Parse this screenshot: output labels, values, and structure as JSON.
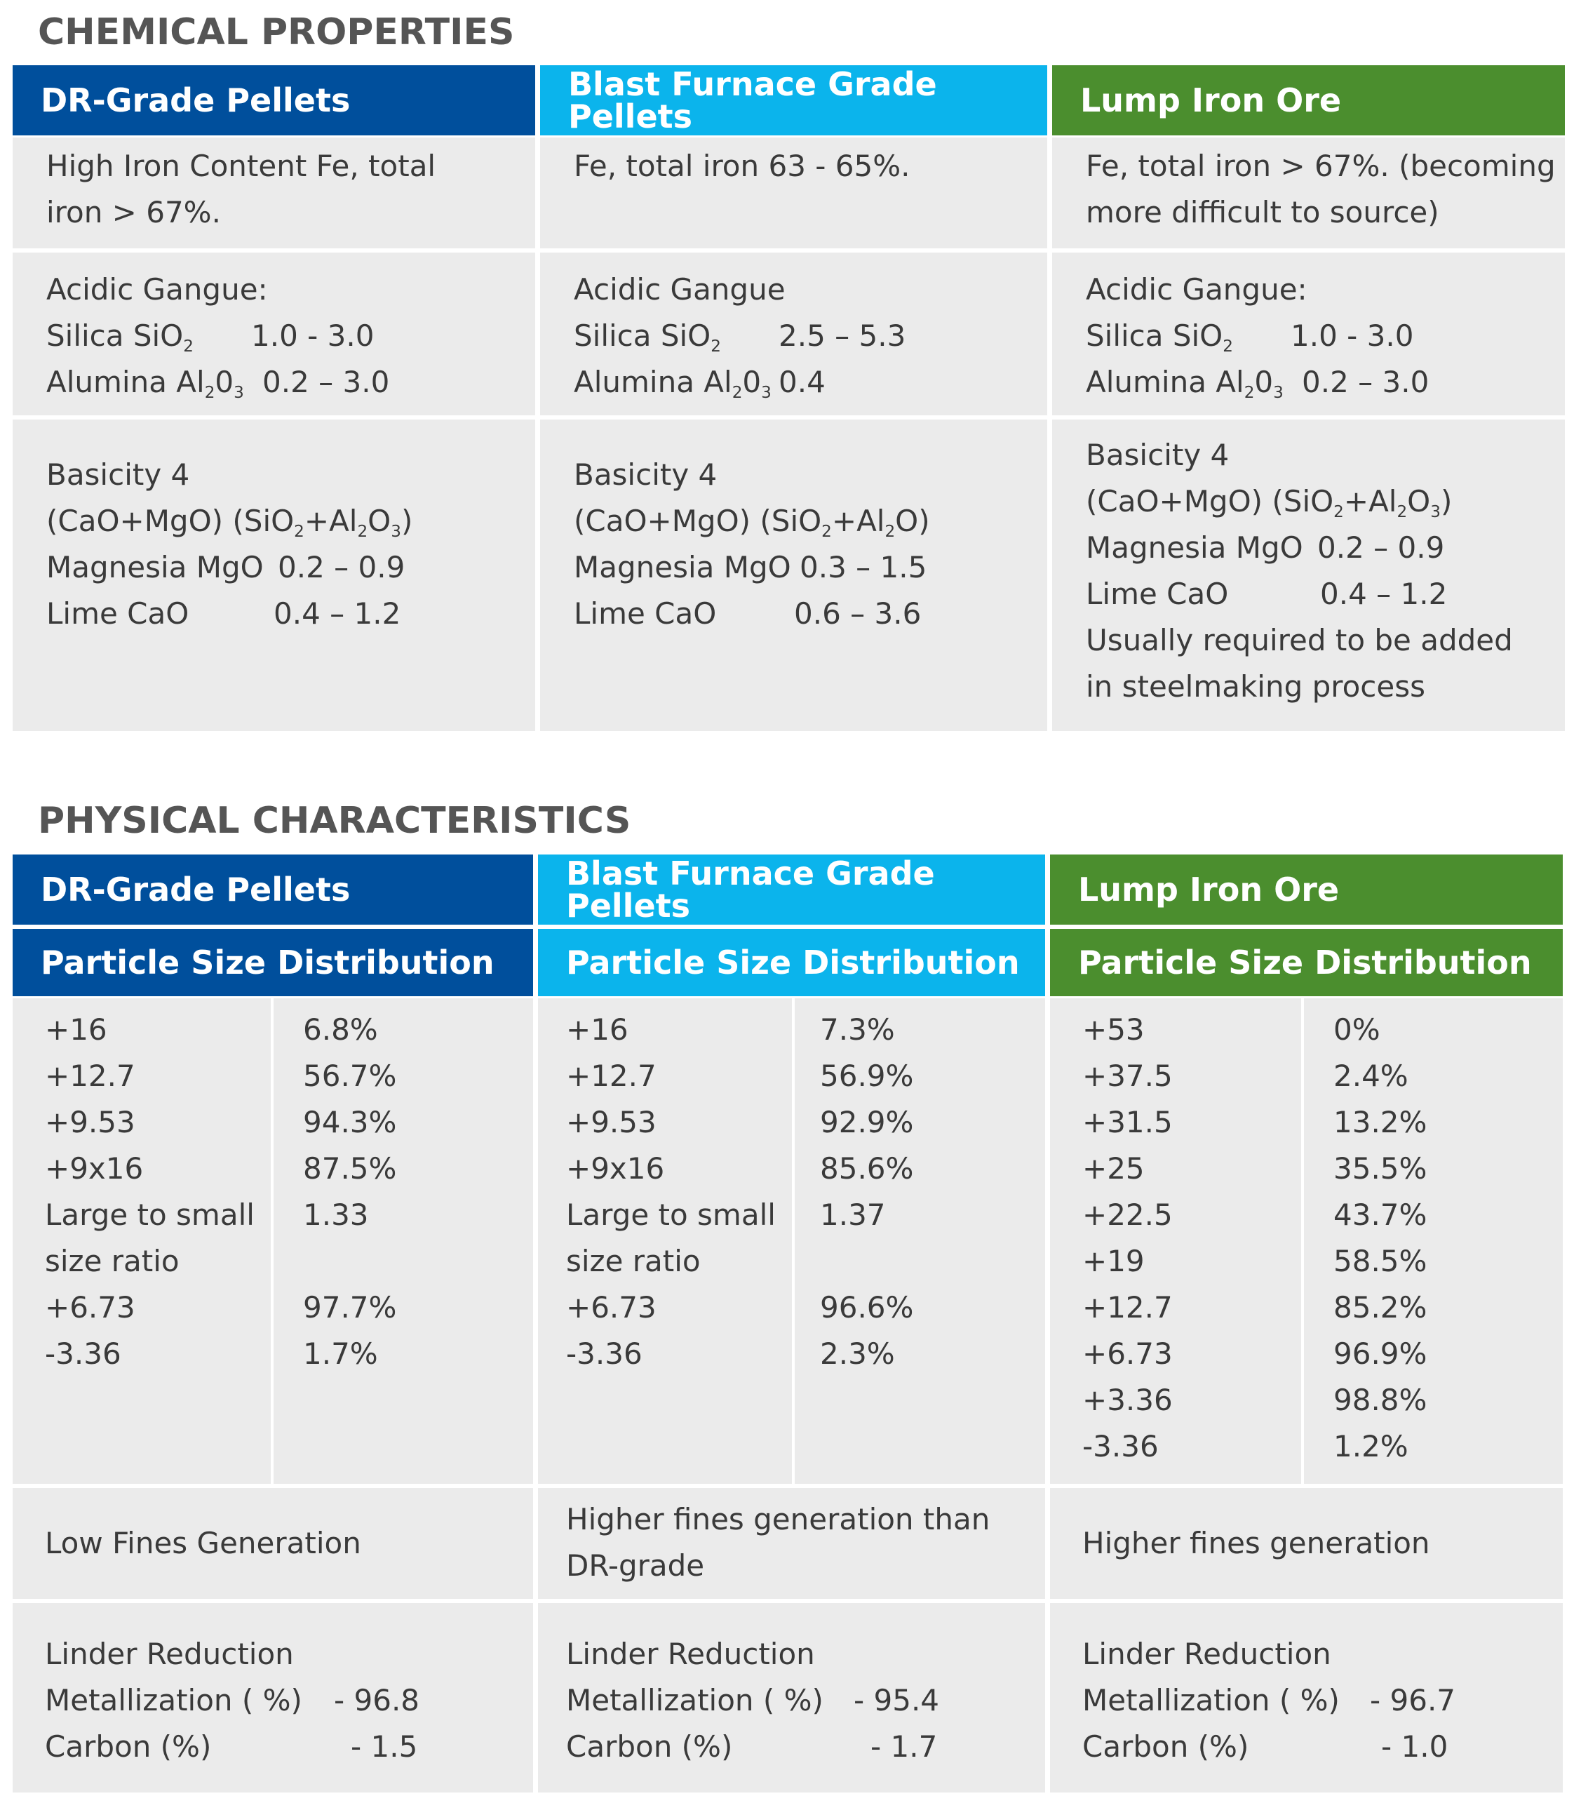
{
  "chemical": {
    "title": "CHEMICAL PROPERTIES",
    "headers": [
      "DR-Grade Pellets",
      "Blast Furnace Grade Pellets",
      "Lump Iron Ore"
    ],
    "iron": {
      "dr": [
        "High Iron Content Fe, total",
        "iron > 67%."
      ],
      "bf": [
        "Fe, total iron 63 - 65%."
      ],
      "lu": [
        "Fe, total iron > 67%. (becoming",
        "more difficult to source)"
      ]
    },
    "gangue": {
      "dr": {
        "title": "Acidic Gangue:",
        "silica_label": "Silica SiO",
        "silica_sub": "2",
        "silica_value": "1.0 - 3.0",
        "alumina_label": "Alumina Al",
        "alumina_sub1": "2",
        "alumina_mid": "0",
        "alumina_sub2": "3",
        "alumina_value": "0.2 – 3.0"
      },
      "bf": {
        "title": "Acidic Gangue",
        "silica_label": "Silica SiO",
        "silica_sub": "2",
        "silica_value": "2.5 – 5.3",
        "alumina_label": "Alumina Al",
        "alumina_sub1": "2",
        "alumina_mid": "0",
        "alumina_sub2": "3",
        "alumina_value": "0.4"
      },
      "lu": {
        "title": "Acidic Gangue:",
        "silica_label": "Silica  SiO",
        "silica_sub": "2",
        "silica_value": "1.0 - 3.0",
        "alumina_label": "Alumina Al",
        "alumina_sub1": "2",
        "alumina_mid": "0",
        "alumina_sub2": "3",
        "alumina_value": "0.2 – 3.0"
      }
    },
    "basicity": {
      "dr": {
        "title": "Basicity 4",
        "formula_a": "(CaO+MgO) (SiO",
        "formula_sub1": "2",
        "formula_b": "+Al",
        "formula_sub2": "2",
        "formula_c": "O",
        "formula_sub3": "3",
        "formula_d": ")",
        "magnesia_label": "Magnesia MgO",
        "magnesia_value": "0.2 – 0.9",
        "lime_label": "Lime CaO",
        "lime_value": "0.4 – 1.2"
      },
      "bf": {
        "title": "Basicity 4",
        "formula_a": "(CaO+MgO) (SiO",
        "formula_sub1": "2",
        "formula_b": "+Al",
        "formula_sub2": "2",
        "formula_c": "O)",
        "magnesia_label": "Magnesia MgO",
        "magnesia_value": "0.3 – 1.5",
        "lime_label": "Lime CaO",
        "lime_value": "0.6 – 3.6"
      },
      "lu": {
        "title": "Basicity 4",
        "formula_a": "(CaO+MgO) (SiO",
        "formula_sub1": "2",
        "formula_b": "+Al",
        "formula_sub2": "2",
        "formula_c": "O",
        "formula_sub3": "3",
        "formula_d": ")",
        "magnesia_label": "Magnesia MgO",
        "magnesia_value": "0.2 – 0.9",
        "lime_label": "Lime CaO",
        "lime_value": "0.4 – 1.2",
        "note": [
          "Usually required to be added",
          "in steelmaking process"
        ]
      }
    }
  },
  "physical": {
    "title": "PHYSICAL CHARACTERISTICS",
    "headers": [
      "DR-Grade Pellets",
      "Blast Furnace Grade Pellets",
      "Lump Iron Ore"
    ],
    "subheader": "Particle Size Distribution",
    "psd": {
      "dr": {
        "labels": [
          "+16",
          "+12.7",
          "+9.53",
          "+9x16",
          "Large to small",
          "size ratio",
          "+6.73",
          "-3.36"
        ],
        "values": [
          "6.8%",
          "56.7%",
          "94.3%",
          "87.5%",
          "1.33",
          "",
          "97.7%",
          "1.7%"
        ]
      },
      "bf": {
        "labels": [
          "+16",
          "+12.7",
          "+9.53",
          "+9x16",
          "Large to small",
          "size ratio",
          "+6.73",
          "-3.36"
        ],
        "values": [
          "7.3%",
          "56.9%",
          "92.9%",
          "85.6%",
          "1.37",
          "",
          "96.6%",
          "2.3%"
        ]
      },
      "lu": {
        "labels": [
          "+53",
          "+37.5",
          "+31.5",
          "+25",
          "+22.5",
          "+19",
          "+12.7",
          "+6.73",
          "+3.36",
          "-3.36"
        ],
        "values": [
          "0%",
          "2.4%",
          "13.2%",
          "35.5%",
          "43.7%",
          "58.5%",
          "85.2%",
          "96.9%",
          "98.8%",
          "1.2%"
        ]
      }
    },
    "fines": {
      "dr": [
        "Low Fines Generation"
      ],
      "bf": [
        "Higher fines generation than",
        "DR-grade"
      ],
      "lu": [
        "Higher fines generation"
      ]
    },
    "linder": {
      "dr": {
        "title": "Linder Reduction",
        "met_label": "Metallization ( %)",
        "met_value": "- 96.8",
        "carbon_label": "Carbon (%)",
        "carbon_value": "- 1.5"
      },
      "bf": {
        "title": "Linder Reduction",
        "met_label": "Metallization ( %)",
        "met_value": "- 95.4",
        "carbon_label": "Carbon (%)",
        "carbon_value": "- 1.7"
      },
      "lu": {
        "title": "Linder Reduction",
        "met_label": "Metallization ( %)",
        "met_value": "- 96.7",
        "carbon_label": "Carbon (%)",
        "carbon_value": "- 1.0"
      }
    }
  }
}
